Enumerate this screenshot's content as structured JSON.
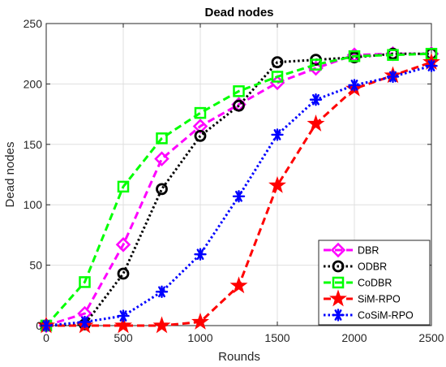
{
  "chart_data": {
    "type": "line",
    "title": "Dead nodes",
    "xlabel": "Rounds",
    "ylabel": "Dead nodes",
    "xlim": [
      0,
      2500
    ],
    "ylim": [
      0,
      250
    ],
    "xticks": [
      0,
      500,
      1000,
      1500,
      2000,
      2500
    ],
    "yticks": [
      0,
      50,
      100,
      150,
      200,
      250
    ],
    "x": [
      0,
      250,
      500,
      750,
      1000,
      1250,
      1500,
      1750,
      2000,
      2250,
      2500
    ],
    "grid": true,
    "legend_position": "bottom-right",
    "series": [
      {
        "name": "DBR",
        "color": "#ff00ff",
        "line_style": "dashed",
        "marker": "diamond",
        "values": [
          0,
          10,
          67,
          138,
          165,
          183,
          201,
          213,
          224,
          225,
          225
        ]
      },
      {
        "name": "ODBR",
        "color": "#000000",
        "line_style": "dotted",
        "marker": "circle",
        "values": [
          0,
          1,
          43,
          113,
          157,
          182,
          218,
          220,
          222,
          225,
          225
        ]
      },
      {
        "name": "CoDBR",
        "color": "#00ff00",
        "line_style": "dashed",
        "marker": "square",
        "values": [
          0,
          36,
          115,
          155,
          176,
          194,
          206,
          216,
          223,
          224,
          225
        ]
      },
      {
        "name": "SiM-RPO",
        "color": "#ff0000",
        "line_style": "dashed",
        "marker": "star",
        "values": [
          0,
          0,
          0,
          0,
          3,
          33,
          116,
          167,
          196,
          207,
          218
        ]
      },
      {
        "name": "CoSiM-RPO",
        "color": "#0000ff",
        "line_style": "dotted",
        "marker": "asterisk",
        "values": [
          0,
          3,
          8,
          28,
          59,
          107,
          158,
          187,
          199,
          206,
          215
        ]
      }
    ]
  }
}
